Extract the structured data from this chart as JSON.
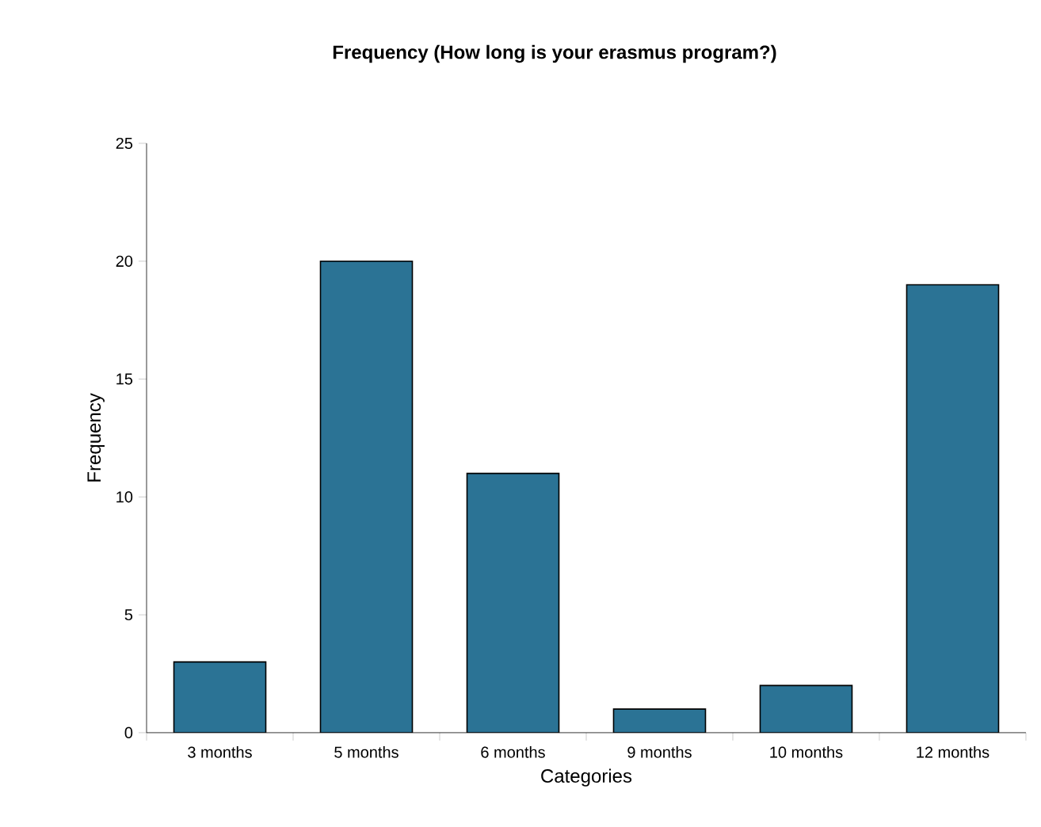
{
  "chart_data": {
    "type": "bar",
    "title": "Frequency (How long is your erasmus program?)",
    "xlabel": "Categories",
    "ylabel": "Frequency",
    "categories": [
      "3 months",
      "5 months",
      "6 months",
      "9 months",
      "10 months",
      "12 months"
    ],
    "values": [
      3,
      20,
      11,
      1,
      2,
      19
    ],
    "color": "#2b7395",
    "ylim": [
      0,
      25
    ],
    "yticks": [
      0,
      5,
      10,
      15,
      20,
      25
    ],
    "grid": false
  }
}
